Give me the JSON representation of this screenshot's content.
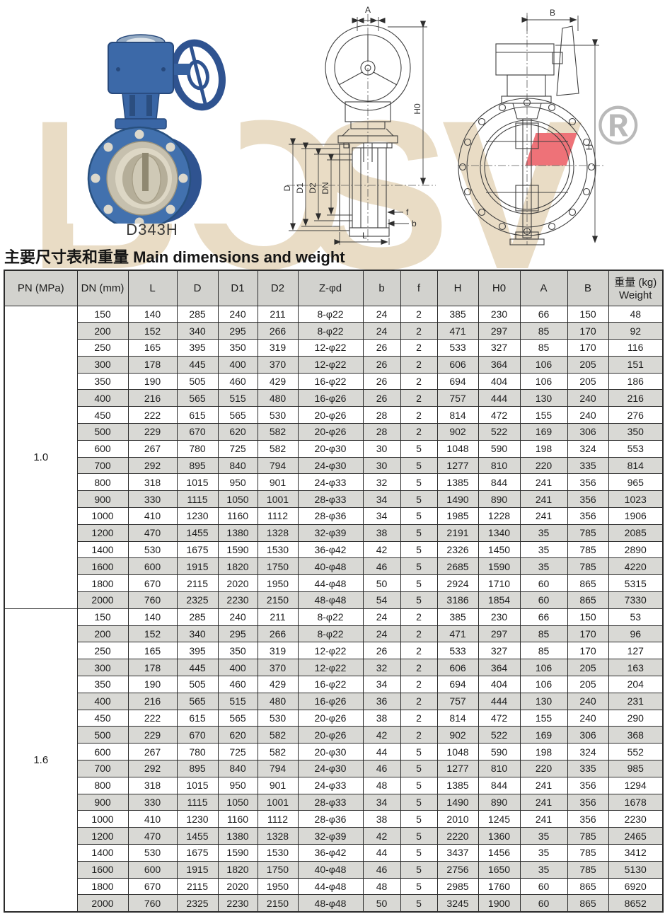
{
  "watermark": {
    "letters": [
      "B",
      "O",
      "S",
      "V"
    ],
    "reg_symbol": "®",
    "color": "#e9dcc5",
    "accent_color": "#ee7278"
  },
  "product": {
    "model": "D343H"
  },
  "section_title": {
    "zh": "主要尺寸表和重量",
    "en": " Main dimensions and weight"
  },
  "drawings": {
    "side": {
      "labels": {
        "a": "A",
        "h0": "H0",
        "d": "D",
        "d1": "D1",
        "d2": "D2",
        "dn": "DN",
        "f": "f",
        "b": "b",
        "l": "L"
      }
    },
    "front": {
      "labels": {
        "b": "B",
        "h": "H"
      }
    }
  },
  "table": {
    "headers": [
      "PN (MPa)",
      "DN (mm)",
      "L",
      "D",
      "D1",
      "D2",
      "Z-φd",
      "b",
      "f",
      "H",
      "H0",
      "A",
      "B",
      "重量 (kg)\nWeight"
    ],
    "groups": [
      {
        "pn": "1.0",
        "rows": [
          [
            "150",
            "140",
            "285",
            "240",
            "211",
            "8-φ22",
            "24",
            "2",
            "385",
            "230",
            "66",
            "150",
            "48"
          ],
          [
            "200",
            "152",
            "340",
            "295",
            "266",
            "8-φ22",
            "24",
            "2",
            "471",
            "297",
            "85",
            "170",
            "92"
          ],
          [
            "250",
            "165",
            "395",
            "350",
            "319",
            "12-φ22",
            "26",
            "2",
            "533",
            "327",
            "85",
            "170",
            "116"
          ],
          [
            "300",
            "178",
            "445",
            "400",
            "370",
            "12-φ22",
            "26",
            "2",
            "606",
            "364",
            "106",
            "205",
            "151"
          ],
          [
            "350",
            "190",
            "505",
            "460",
            "429",
            "16-φ22",
            "26",
            "2",
            "694",
            "404",
            "106",
            "205",
            "186"
          ],
          [
            "400",
            "216",
            "565",
            "515",
            "480",
            "16-φ26",
            "26",
            "2",
            "757",
            "444",
            "130",
            "240",
            "216"
          ],
          [
            "450",
            "222",
            "615",
            "565",
            "530",
            "20-φ26",
            "28",
            "2",
            "814",
            "472",
            "155",
            "240",
            "276"
          ],
          [
            "500",
            "229",
            "670",
            "620",
            "582",
            "20-φ26",
            "28",
            "2",
            "902",
            "522",
            "169",
            "306",
            "350"
          ],
          [
            "600",
            "267",
            "780",
            "725",
            "582",
            "20-φ30",
            "30",
            "5",
            "1048",
            "590",
            "198",
            "324",
            "553"
          ],
          [
            "700",
            "292",
            "895",
            "840",
            "794",
            "24-φ30",
            "30",
            "5",
            "1277",
            "810",
            "220",
            "335",
            "814"
          ],
          [
            "800",
            "318",
            "1015",
            "950",
            "901",
            "24-φ33",
            "32",
            "5",
            "1385",
            "844",
            "241",
            "356",
            "965"
          ],
          [
            "900",
            "330",
            "1115",
            "1050",
            "1001",
            "28-φ33",
            "34",
            "5",
            "1490",
            "890",
            "241",
            "356",
            "1023"
          ],
          [
            "1000",
            "410",
            "1230",
            "1160",
            "1112",
            "28-φ36",
            "34",
            "5",
            "1985",
            "1228",
            "241",
            "356",
            "1906"
          ],
          [
            "1200",
            "470",
            "1455",
            "1380",
            "1328",
            "32-φ39",
            "38",
            "5",
            "2191",
            "1340",
            "35",
            "785",
            "2085"
          ],
          [
            "1400",
            "530",
            "1675",
            "1590",
            "1530",
            "36-φ42",
            "42",
            "5",
            "2326",
            "1450",
            "35",
            "785",
            "2890"
          ],
          [
            "1600",
            "600",
            "1915",
            "1820",
            "1750",
            "40-φ48",
            "46",
            "5",
            "2685",
            "1590",
            "35",
            "785",
            "4220"
          ],
          [
            "1800",
            "670",
            "2115",
            "2020",
            "1950",
            "44-φ48",
            "50",
            "5",
            "2924",
            "1710",
            "60",
            "865",
            "5315"
          ],
          [
            "2000",
            "760",
            "2325",
            "2230",
            "2150",
            "48-φ48",
            "54",
            "5",
            "3186",
            "1854",
            "60",
            "865",
            "7330"
          ]
        ]
      },
      {
        "pn": "1.6",
        "rows": [
          [
            "150",
            "140",
            "285",
            "240",
            "211",
            "8-φ22",
            "24",
            "2",
            "385",
            "230",
            "66",
            "150",
            "53"
          ],
          [
            "200",
            "152",
            "340",
            "295",
            "266",
            "8-φ22",
            "24",
            "2",
            "471",
            "297",
            "85",
            "170",
            "96"
          ],
          [
            "250",
            "165",
            "395",
            "350",
            "319",
            "12-φ22",
            "26",
            "2",
            "533",
            "327",
            "85",
            "170",
            "127"
          ],
          [
            "300",
            "178",
            "445",
            "400",
            "370",
            "12-φ22",
            "32",
            "2",
            "606",
            "364",
            "106",
            "205",
            "163"
          ],
          [
            "350",
            "190",
            "505",
            "460",
            "429",
            "16-φ22",
            "34",
            "2",
            "694",
            "404",
            "106",
            "205",
            "204"
          ],
          [
            "400",
            "216",
            "565",
            "515",
            "480",
            "16-φ26",
            "36",
            "2",
            "757",
            "444",
            "130",
            "240",
            "231"
          ],
          [
            "450",
            "222",
            "615",
            "565",
            "530",
            "20-φ26",
            "38",
            "2",
            "814",
            "472",
            "155",
            "240",
            "290"
          ],
          [
            "500",
            "229",
            "670",
            "620",
            "582",
            "20-φ26",
            "42",
            "2",
            "902",
            "522",
            "169",
            "306",
            "368"
          ],
          [
            "600",
            "267",
            "780",
            "725",
            "582",
            "20-φ30",
            "44",
            "5",
            "1048",
            "590",
            "198",
            "324",
            "552"
          ],
          [
            "700",
            "292",
            "895",
            "840",
            "794",
            "24-φ30",
            "46",
            "5",
            "1277",
            "810",
            "220",
            "335",
            "985"
          ],
          [
            "800",
            "318",
            "1015",
            "950",
            "901",
            "24-φ33",
            "48",
            "5",
            "1385",
            "844",
            "241",
            "356",
            "1294"
          ],
          [
            "900",
            "330",
            "1115",
            "1050",
            "1001",
            "28-φ33",
            "34",
            "5",
            "1490",
            "890",
            "241",
            "356",
            "1678"
          ],
          [
            "1000",
            "410",
            "1230",
            "1160",
            "1112",
            "28-φ36",
            "38",
            "5",
            "2010",
            "1245",
            "241",
            "356",
            "2230"
          ],
          [
            "1200",
            "470",
            "1455",
            "1380",
            "1328",
            "32-φ39",
            "42",
            "5",
            "2220",
            "1360",
            "35",
            "785",
            "2465"
          ],
          [
            "1400",
            "530",
            "1675",
            "1590",
            "1530",
            "36-φ42",
            "44",
            "5",
            "3437",
            "1456",
            "35",
            "785",
            "3412"
          ],
          [
            "1600",
            "600",
            "1915",
            "1820",
            "1750",
            "40-φ48",
            "46",
            "5",
            "2756",
            "1650",
            "35",
            "785",
            "5130"
          ],
          [
            "1800",
            "670",
            "2115",
            "2020",
            "1950",
            "44-φ48",
            "48",
            "5",
            "2985",
            "1760",
            "60",
            "865",
            "6920"
          ],
          [
            "2000",
            "760",
            "2325",
            "2230",
            "2150",
            "48-φ48",
            "50",
            "5",
            "3245",
            "1900",
            "60",
            "865",
            "8652"
          ]
        ]
      }
    ]
  }
}
